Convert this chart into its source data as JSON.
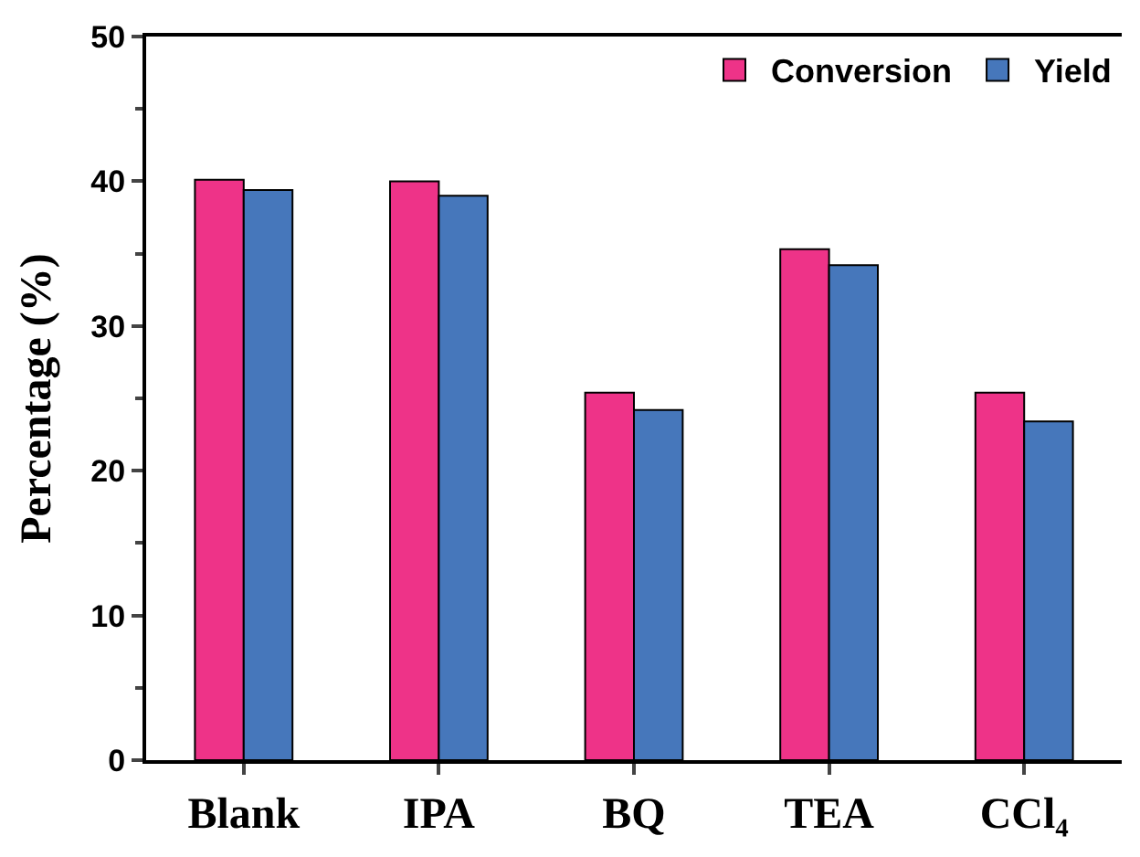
{
  "chart_data": {
    "type": "bar",
    "ylabel": "Percentage (%)",
    "categories": [
      "Blank",
      "IPA",
      "BQ",
      "TEA",
      "CCl₄"
    ],
    "series": [
      {
        "name": "Conversion",
        "color": "#ee3388",
        "values": [
          40.1,
          40.0,
          25.4,
          35.3,
          25.4
        ]
      },
      {
        "name": "Yield",
        "color": "#4677bb",
        "values": [
          39.4,
          39.0,
          24.2,
          34.2,
          23.4
        ]
      }
    ],
    "ylim": [
      0,
      50
    ],
    "yticks": [
      0,
      10,
      20,
      30,
      40,
      50
    ],
    "legend": "top right"
  }
}
